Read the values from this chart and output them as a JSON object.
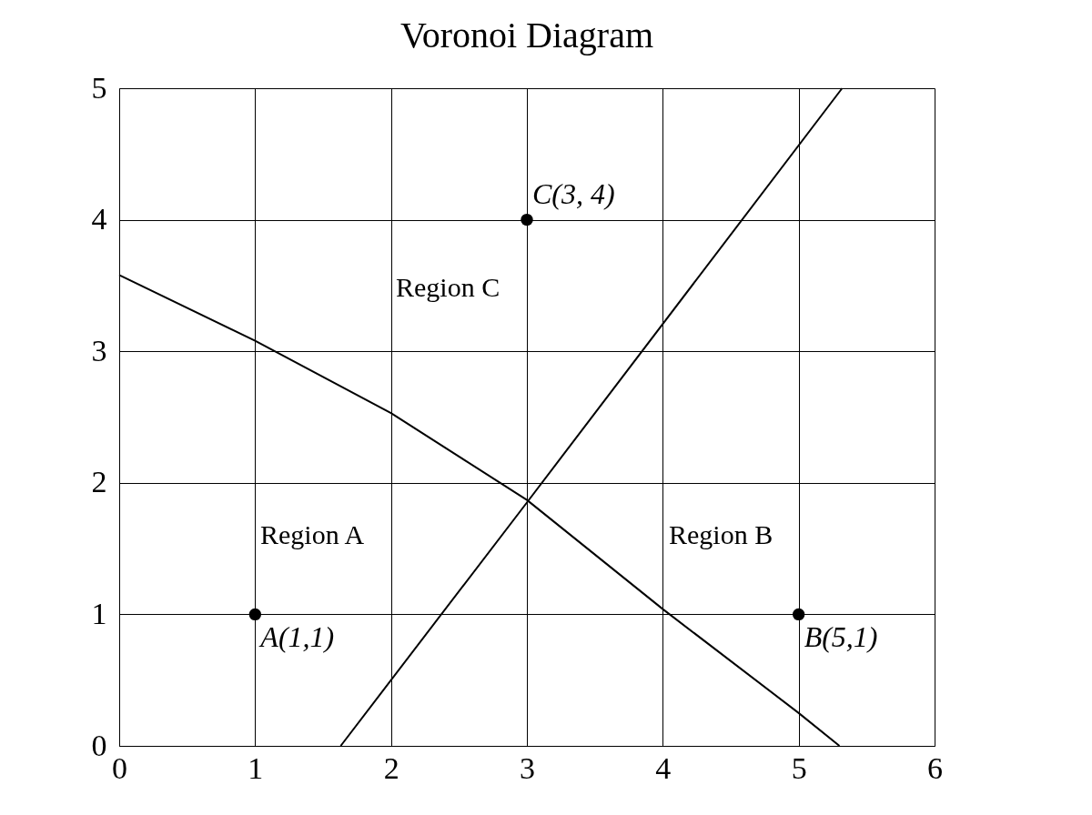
{
  "chart_data": {
    "type": "line",
    "title": "Voronoi Diagram",
    "xlim": [
      0,
      6
    ],
    "ylim": [
      0,
      5
    ],
    "xticks": [
      0,
      1,
      2,
      3,
      4,
      5,
      6
    ],
    "yticks": [
      0,
      1,
      2,
      3,
      4,
      5
    ],
    "grid": true,
    "series": [
      {
        "color": "#000000",
        "x": [
          0,
          1,
          2,
          2.5,
          3,
          4,
          5,
          5.3
        ],
        "values": [
          3.58,
          3.08,
          2.53,
          2.2,
          1.87,
          1.04,
          0.25,
          0
        ]
      },
      {
        "color": "#000000",
        "x": [
          1.63,
          3,
          5.32
        ],
        "values": [
          0,
          1.85,
          5
        ]
      },
      {
        "type": "scatter",
        "color": "#000000",
        "marker": "circle",
        "x": [
          1,
          5,
          3
        ],
        "values": [
          1,
          1,
          4
        ],
        "value_labels": [
          "A(1,1)",
          "B(5,1)",
          "C(3, 4)"
        ]
      }
    ],
    "annotations": [
      "Region A",
      "Region B",
      "Region C"
    ]
  }
}
